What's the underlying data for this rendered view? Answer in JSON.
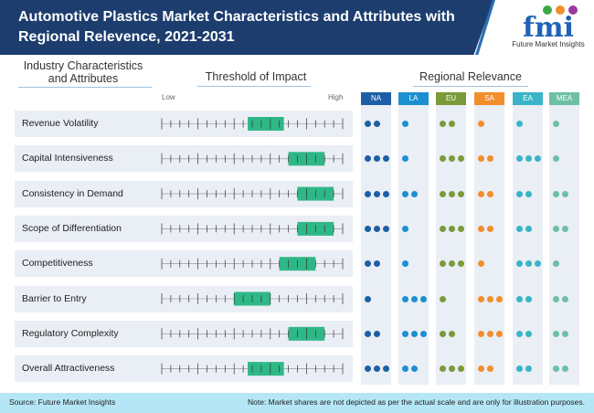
{
  "header": {
    "title": "Automotive Plastics Market Characteristics and Attributes with Regional Relevence, 2021-2031",
    "logo_text": "Future Market Insights",
    "logo_letters": "fmi"
  },
  "columns": {
    "attributes": "Industry Characteristics and Attributes",
    "threshold": "Threshold of Impact",
    "regional": "Regional Relevance"
  },
  "footer": {
    "source": "Source: Future Market Insights",
    "note": "Note: Market shares are not depicted as per the actual scale and are only for illustration purposes."
  },
  "colors": {
    "header_band": "#1c3d6e",
    "bar": "#2fb887",
    "NA": "#1d5fa6",
    "LA": "#1c8fd1",
    "EU": "#7b9a3a",
    "SA": "#f28e2b",
    "EA": "#39b4c8",
    "MEA": "#6dbfa5"
  },
  "chart_data": {
    "type": "table",
    "title": "Automotive Plastics Market Characteristics and Attributes with Regional Relevence, 2021-2031",
    "threshold_scale": {
      "low_label": "Low",
      "high_label": "High",
      "range": [
        0,
        20
      ],
      "ticks": 21,
      "major_tick_every": 4
    },
    "regions": [
      "NA",
      "LA",
      "EU",
      "SA",
      "EA",
      "MEA"
    ],
    "rows": [
      {
        "label": "Revenue Volatility",
        "impact": [
          9.5,
          13.5
        ],
        "relevance": [
          2,
          1,
          2,
          1,
          1,
          1
        ]
      },
      {
        "label": "Capital Intensiveness",
        "impact": [
          14,
          18
        ],
        "relevance": [
          3,
          1,
          3,
          2,
          3,
          1
        ]
      },
      {
        "label": "Consistency in Demand",
        "impact": [
          15,
          19
        ],
        "relevance": [
          3,
          2,
          3,
          2,
          2,
          2
        ]
      },
      {
        "label": "Scope of Differentiation",
        "impact": [
          15,
          19
        ],
        "relevance": [
          3,
          1,
          3,
          2,
          2,
          2
        ]
      },
      {
        "label": "Competitiveness",
        "impact": [
          13,
          17
        ],
        "relevance": [
          2,
          1,
          3,
          1,
          3,
          1
        ]
      },
      {
        "label": "Barrier to Entry",
        "impact": [
          8,
          12
        ],
        "relevance": [
          1,
          3,
          1,
          3,
          2,
          2
        ]
      },
      {
        "label": "Regulatory Complexity",
        "impact": [
          14,
          18
        ],
        "relevance": [
          2,
          3,
          2,
          3,
          2,
          2
        ]
      },
      {
        "label": "Overall Attractiveness",
        "impact": [
          9.5,
          13.5
        ],
        "relevance": [
          3,
          2,
          3,
          2,
          2,
          2
        ]
      }
    ]
  }
}
